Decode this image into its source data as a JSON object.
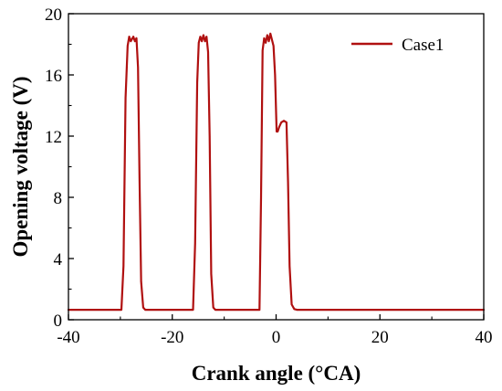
{
  "chart_data": {
    "type": "line",
    "xlabel": "Crank angle (°CA)",
    "ylabel": "Opening voltage (V)",
    "xlim": [
      -40,
      40
    ],
    "ylim": [
      0,
      20
    ],
    "x_ticks": [
      -40,
      -20,
      0,
      20,
      40
    ],
    "y_ticks": [
      0,
      4,
      8,
      12,
      16,
      20
    ],
    "x_tick_labels": [
      "-40",
      "-20",
      "0",
      "20",
      "40"
    ],
    "y_tick_labels": [
      "0",
      "4",
      "8",
      "12",
      "16",
      "20"
    ],
    "grid": false,
    "legend": {
      "position": "top-right",
      "entries": [
        "Case1"
      ]
    },
    "colors": {
      "series": "#b01010",
      "axis": "#000000"
    },
    "series": [
      {
        "name": "Case1",
        "x": [
          -40,
          -29.8,
          -29.4,
          -29.0,
          -28.6,
          -28.3,
          -28.0,
          -27.5,
          -27.2,
          -26.9,
          -26.6,
          -26.3,
          -26.0,
          -25.6,
          -25.2,
          -16.0,
          -15.6,
          -15.2,
          -14.9,
          -14.6,
          -14.3,
          -14.0,
          -13.7,
          -13.4,
          -13.1,
          -12.8,
          -12.5,
          -12.1,
          -11.7,
          -3.2,
          -2.9,
          -2.6,
          -2.3,
          -2.0,
          -1.7,
          -1.4,
          -1.1,
          -0.8,
          -0.5,
          -0.2,
          0.1,
          0.3,
          0.6,
          1.0,
          1.5,
          2.0,
          2.3,
          2.6,
          3.0,
          3.5,
          4.0,
          40
        ],
        "y": [
          0.65,
          0.65,
          3.5,
          14.5,
          17.9,
          18.5,
          18.2,
          18.5,
          18.2,
          18.4,
          16.5,
          9.0,
          2.5,
          0.8,
          0.65,
          0.65,
          5.0,
          15.5,
          18.1,
          18.5,
          18.2,
          18.6,
          18.2,
          18.5,
          17.5,
          12.0,
          3.0,
          0.8,
          0.65,
          0.65,
          8.0,
          17.6,
          18.4,
          18.1,
          18.6,
          18.2,
          18.7,
          18.3,
          17.9,
          16.0,
          12.3,
          12.3,
          12.6,
          12.9,
          13.0,
          12.9,
          9.0,
          3.5,
          1.0,
          0.7,
          0.65,
          0.65
        ]
      }
    ]
  }
}
